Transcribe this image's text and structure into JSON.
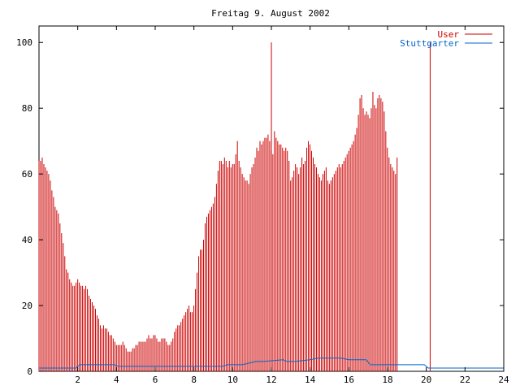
{
  "chart_data": {
    "type": "bar",
    "title": "Freitag 9. August 2002",
    "xlim": [
      0,
      24
    ],
    "ylim": [
      0,
      105
    ],
    "x_ticks": [
      2,
      4,
      6,
      8,
      10,
      12,
      14,
      16,
      18,
      20,
      22,
      24
    ],
    "x_tick_labels": [
      "2",
      "4",
      "6",
      "8",
      "10",
      "12",
      "14",
      "16",
      "18",
      "20",
      "22",
      "24"
    ],
    "y_ticks": [
      0,
      20,
      40,
      60,
      80,
      100
    ],
    "y_tick_labels": [
      "0",
      "20",
      "40",
      "60",
      "80",
      "100"
    ],
    "legend_position": "top-right",
    "colors": {
      "user": "#cc0000",
      "stuttgarter": "#0066cc",
      "axes": "#000000"
    },
    "series": [
      {
        "name": "User",
        "style": "impulses",
        "sample_interval_hours": 0.0833,
        "values": [
          64,
          64,
          65,
          63,
          62,
          61,
          60,
          58,
          55,
          53,
          50,
          49,
          48,
          45,
          42,
          39,
          35,
          31,
          30,
          28,
          27,
          26,
          26,
          27,
          28,
          27,
          26,
          26,
          25,
          26,
          25,
          23,
          22,
          21,
          20,
          19,
          17,
          16,
          14,
          13,
          14,
          13,
          13,
          12,
          11,
          11,
          10,
          9,
          8,
          8,
          8,
          8,
          9,
          8,
          7,
          6,
          6,
          6,
          7,
          7,
          8,
          8,
          9,
          9,
          9,
          9,
          9,
          10,
          11,
          10,
          10,
          11,
          11,
          10,
          9,
          9,
          10,
          10,
          10,
          9,
          8,
          8,
          9,
          10,
          12,
          13,
          14,
          14,
          15,
          16,
          17,
          18,
          19,
          20,
          18,
          18,
          20,
          25,
          30,
          35,
          37,
          37,
          40,
          45,
          47,
          48,
          49,
          50,
          51,
          53,
          57,
          61,
          64,
          64,
          63,
          65,
          64,
          62,
          64,
          62,
          63,
          63,
          66,
          70,
          64,
          62,
          60,
          59,
          58,
          58,
          57,
          60,
          62,
          63,
          65,
          68,
          67,
          70,
          69,
          70,
          71,
          71,
          72,
          70,
          67,
          66,
          73,
          71,
          70,
          69,
          69,
          68,
          67,
          68,
          67,
          64,
          58,
          59,
          61,
          63,
          62,
          60,
          62,
          65,
          63,
          64,
          68,
          70,
          69,
          67,
          65,
          63,
          62,
          60,
          59,
          58,
          60,
          61,
          62,
          58,
          57,
          58,
          59,
          60,
          61,
          62,
          63,
          62,
          63,
          64,
          65,
          66,
          67,
          68,
          69,
          70,
          72,
          74,
          78,
          83,
          84,
          80,
          78,
          79,
          78,
          77,
          80,
          85,
          81,
          80,
          83,
          84,
          83,
          82,
          79,
          73,
          68,
          65,
          63,
          62,
          61,
          60,
          65
        ]
      },
      {
        "name": "Stuttgarter",
        "style": "line",
        "x": [
          0,
          1.9,
          2.1,
          3.9,
          4.1,
          9.5,
          9.7,
          10.5,
          11.2,
          11.6,
          12.6,
          12.8,
          13.2,
          14,
          14.4,
          15.6,
          16,
          16.9,
          17.1,
          19.9,
          20.1,
          24
        ],
        "values": [
          1,
          1,
          2,
          2,
          1.5,
          1.5,
          2,
          2,
          3,
          3,
          3.5,
          3,
          3,
          3.5,
          4,
          4,
          3.5,
          3.5,
          2,
          2,
          1,
          1
        ]
      }
    ],
    "markers": [
      {
        "x": 12.0,
        "value": 100
      },
      {
        "x": 20.2,
        "value": 100
      }
    ]
  }
}
